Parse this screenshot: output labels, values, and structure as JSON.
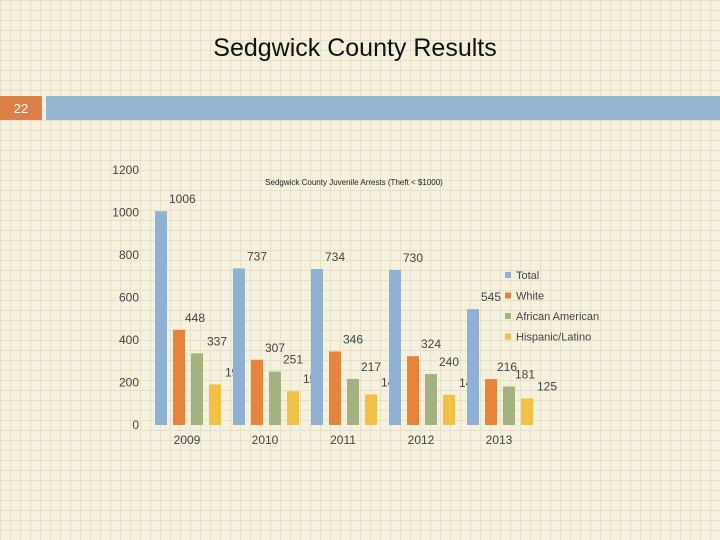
{
  "slide": {
    "title": "Sedgwick County Results",
    "number": "22"
  },
  "colors": {
    "number_box": "#dd8047",
    "top_bar": "#94b6d2"
  },
  "chart_data": {
    "type": "bar",
    "title": "Sedgwick County Juvenile Arrests (Theft < $1000)",
    "xlabel": "",
    "ylabel": "",
    "categories": [
      "2009",
      "2010",
      "2011",
      "2012",
      "2013"
    ],
    "ylim": [
      0,
      1200
    ],
    "yticks": [
      0,
      200,
      400,
      600,
      800,
      1000,
      1200
    ],
    "grid": false,
    "legend_position": "right",
    "series": [
      {
        "name": "Total",
        "values": [
          1006,
          737,
          734,
          730,
          545
        ],
        "color": "#8fb1d4"
      },
      {
        "name": "White",
        "values": [
          448,
          307,
          346,
          324,
          216
        ],
        "color": "#e8833a"
      },
      {
        "name": "African American",
        "values": [
          337,
          251,
          217,
          240,
          181
        ],
        "color": "#a3b27f"
      },
      {
        "name": "Hispanic/Latino",
        "values": [
          191,
          159,
          144,
          142,
          125
        ],
        "color": "#f3c046"
      }
    ]
  }
}
